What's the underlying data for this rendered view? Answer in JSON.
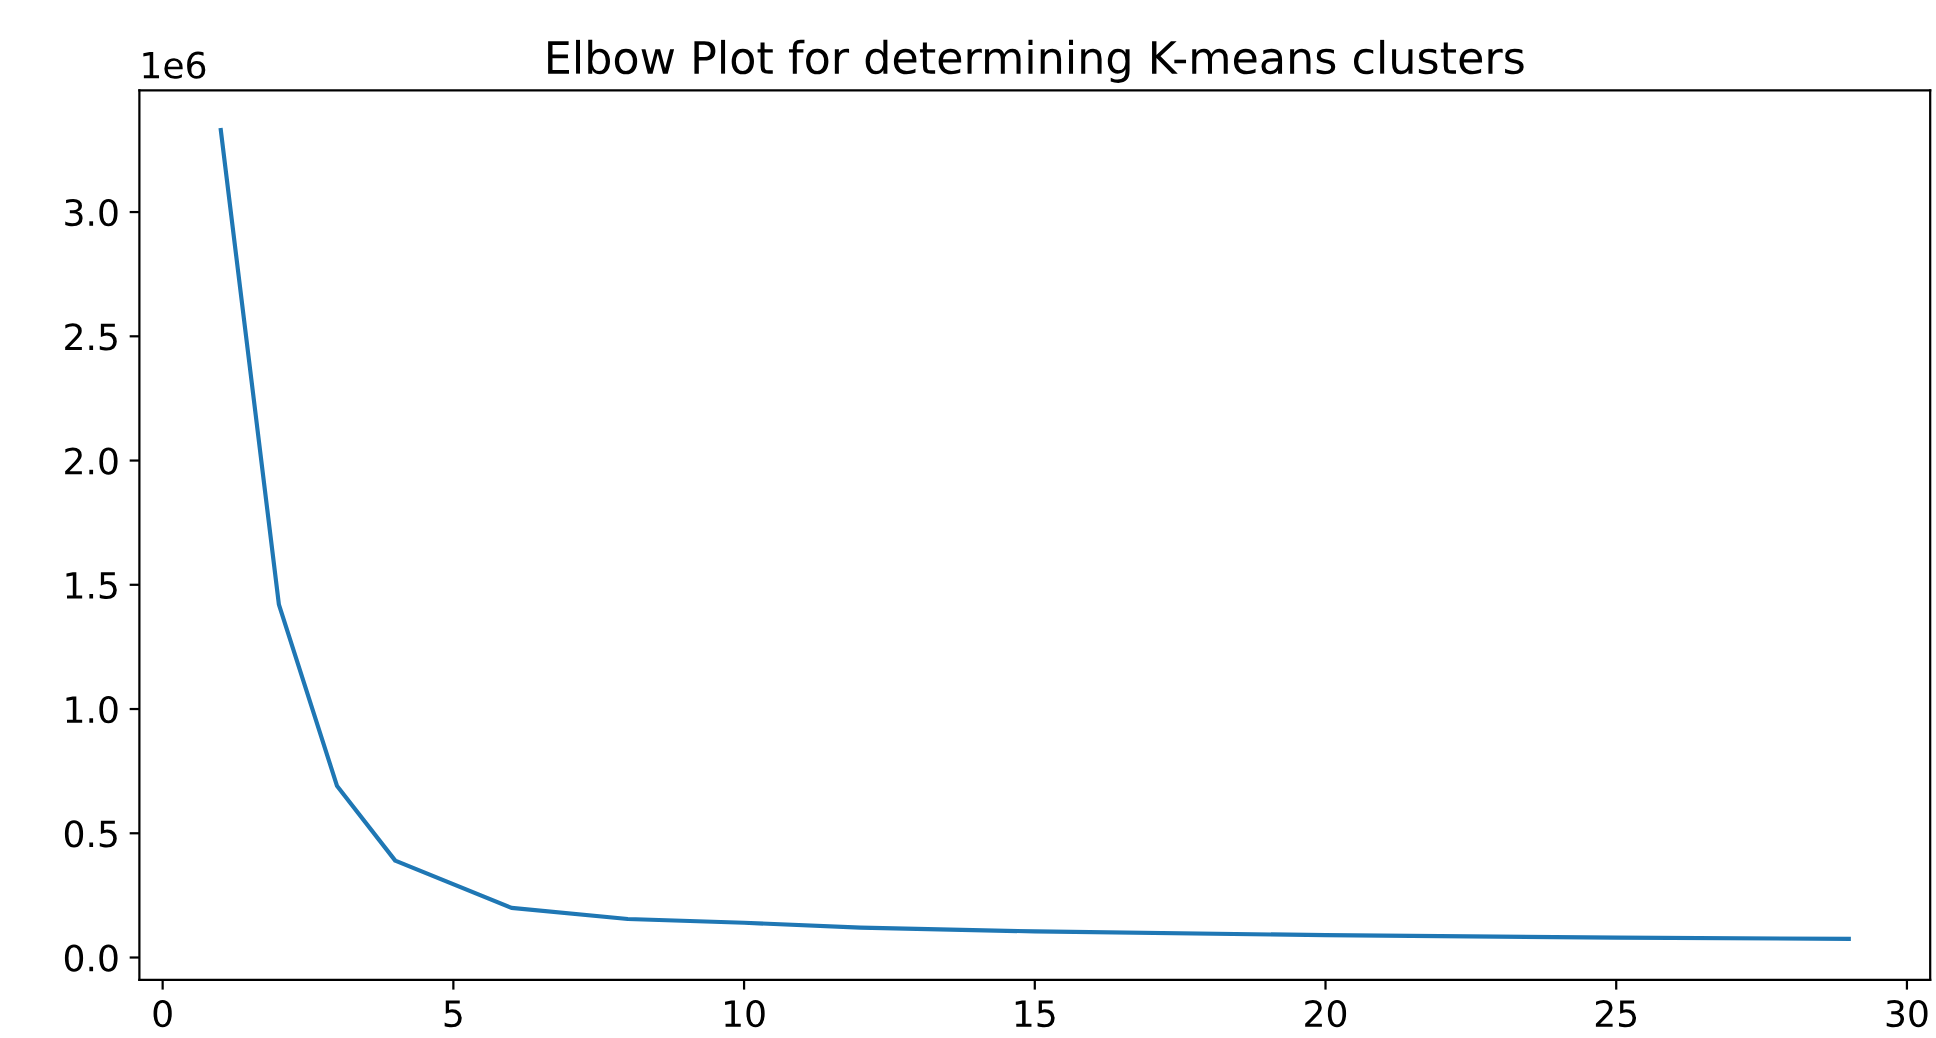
{
  "chart_data": {
    "type": "line",
    "title": "Elbow Plot for determining K-means clusters",
    "x": [
      1,
      2,
      3,
      4,
      6,
      8,
      10,
      12,
      15,
      20,
      25,
      29
    ],
    "series": [
      {
        "color": "#1f77b4",
        "values": [
          3.33,
          1.42,
          0.69,
          0.39,
          0.2,
          0.155,
          0.14,
          0.12,
          0.105,
          0.09,
          0.08,
          0.075
        ]
      }
    ],
    "xlim": [
      -0.4,
      30.4
    ],
    "xticks": [
      0,
      5,
      10,
      15,
      20,
      25,
      30
    ],
    "ylim": [
      -0.09,
      3.49
    ],
    "yticks": [
      {
        "value": 0,
        "label": "0.0"
      },
      {
        "value": 0.5,
        "label": "0.5"
      },
      {
        "value": 1,
        "label": "1.0"
      },
      {
        "value": 1.5,
        "label": "1.5"
      },
      {
        "value": 2,
        "label": "2.0"
      },
      {
        "value": 2.5,
        "label": "2.5"
      },
      {
        "value": 3,
        "label": "3.0"
      }
    ],
    "annotations": [
      "1e6"
    ],
    "grid": false,
    "legend": false,
    "marker": "none",
    "line_style": "solid"
  }
}
